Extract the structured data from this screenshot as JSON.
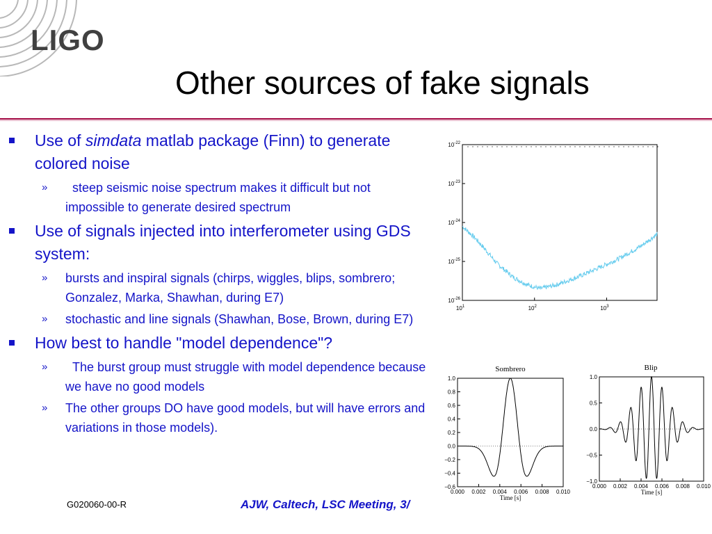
{
  "logo": {
    "name": "LIGO",
    "icon": "ligo-arc-logo-icon"
  },
  "title": "Other sources of fake signals",
  "bullets": [
    {
      "pre": "Use of ",
      "em": "simdata",
      "post": " matlab package (Finn) to generate colored noise",
      "subs": [
        "  steep seismic noise spectrum makes it difficult but not impossible to generate desired spectrum"
      ]
    },
    {
      "pre": "Use of signals injected into interferometer using GDS system:",
      "em": "",
      "post": "",
      "subs": [
        "bursts and inspiral signals (chirps, wiggles, blips, sombrero; Gonzalez, Marka, Shawhan, during E7)",
        "stochastic and line signals (Shawhan, Bose, Brown, during E7)"
      ]
    },
    {
      "pre": "How best to handle \"model dependence\"?",
      "em": "",
      "post": "",
      "subs": [
        "  The burst group must struggle with model dependence because we have no good models",
        "The other groups DO have good models, but will have errors and variations in those models)."
      ]
    }
  ],
  "sub_marker": "»",
  "footer": {
    "doc_id": "G020060-00-R",
    "credit": "AJW, Caltech, LSC Meeting, 3/"
  },
  "colors": {
    "text_blue": "#1414c8",
    "rule": "#a0003c",
    "spectrum": "#66ccee"
  },
  "chart_data": [
    {
      "type": "line",
      "title": "",
      "xscale": "log",
      "yscale": "log",
      "x_ticks": [
        "10",
        "10",
        "10"
      ],
      "x_tick_exp": [
        "1",
        "2",
        "3"
      ],
      "y_ticks": [
        "10",
        "10",
        "10",
        "10",
        "10"
      ],
      "y_tick_exp": [
        "-22",
        "-23",
        "-24",
        "-25",
        "-26"
      ],
      "xlim": [
        10,
        5000
      ],
      "ylim": [
        1e-26,
        1e-22
      ],
      "series": [
        {
          "x": [
            10,
            15,
            20,
            30,
            50,
            80,
            120,
            200,
            400,
            800,
            1500,
            3000,
            5000
          ],
          "y": [
            8e-25,
            4e-25,
            2.2e-25,
            9e-26,
            4e-26,
            2.5e-26,
            2e-26,
            2.5e-26,
            4e-26,
            7e-26,
            1.2e-25,
            2.5e-25,
            5e-25
          ]
        }
      ]
    },
    {
      "type": "line",
      "title": "Sombrero",
      "xlabel": "Time [s]",
      "x_ticks": [
        "0.000",
        "0.002",
        "0.004",
        "0.006",
        "0.008",
        "0.010"
      ],
      "y_ticks": [
        "1.0",
        "0.8",
        "0.6",
        "0.4",
        "0.2",
        "0.0",
        "−0.2",
        "−0.4",
        "−0.6"
      ],
      "xlim": [
        0,
        0.01
      ],
      "ylim": [
        -0.6,
        1.0
      ],
      "center": 0.005,
      "width": 0.0009
    },
    {
      "type": "line",
      "title": "Blip",
      "xlabel": "Time [s]",
      "x_ticks": [
        "0.000",
        "0.002",
        "0.004",
        "0.006",
        "0.008",
        "0.010"
      ],
      "y_ticks": [
        "1.0",
        "0.5",
        "0.0",
        "−0.5",
        "−1.0"
      ],
      "xlim": [
        0,
        0.01
      ],
      "ylim": [
        -1.0,
        1.0
      ],
      "center": 0.005,
      "freq": 1000,
      "sigma": 0.0015
    }
  ]
}
